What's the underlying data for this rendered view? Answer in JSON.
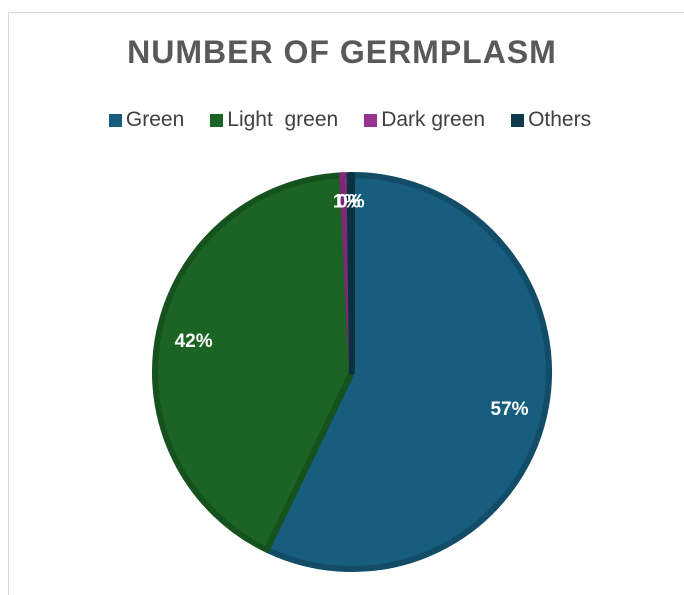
{
  "chart_data": {
    "type": "pie",
    "title": "NUMBER OF GERMPLASM",
    "legend_position": "top",
    "slices": [
      {
        "name": "Green",
        "value": 57,
        "label": "57%",
        "color": "#165D7E"
      },
      {
        "name": "Light  green",
        "value": 42,
        "label": "42%",
        "color": "#1B6423"
      },
      {
        "name": "Dark green",
        "value": 0.6,
        "label": "1%",
        "color": "#97338F"
      },
      {
        "name": "Others",
        "value": 0.2,
        "label": "0%",
        "color": "#0E3A4E"
      }
    ]
  }
}
